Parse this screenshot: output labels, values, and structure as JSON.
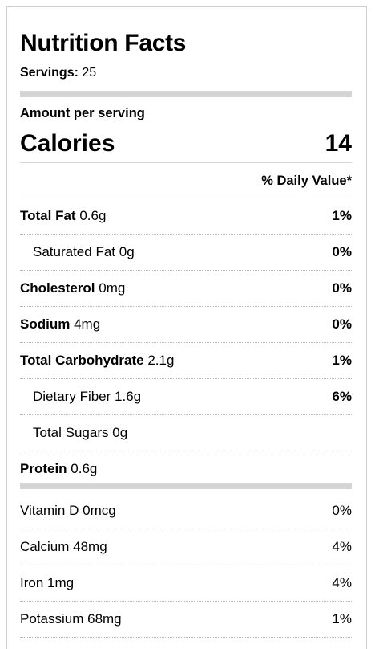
{
  "label": {
    "title": "Nutrition Facts",
    "servings_label": "Servings:",
    "servings_value": "25",
    "amount_per_serving": "Amount per serving",
    "calories_label": "Calories",
    "calories_value": "14",
    "daily_value_header": "% Daily Value*"
  },
  "nutrients": [
    {
      "name": "Total Fat",
      "amount": "0.6g",
      "dv": "1%"
    },
    {
      "name": "Saturated Fat",
      "amount": "0g",
      "dv": "0%"
    },
    {
      "name": "Cholesterol",
      "amount": "0mg",
      "dv": "0%"
    },
    {
      "name": "Sodium",
      "amount": "4mg",
      "dv": "0%"
    },
    {
      "name": "Total Carbohydrate",
      "amount": "2.1g",
      "dv": "1%"
    },
    {
      "name": "Dietary Fiber",
      "amount": "1.6g",
      "dv": "6%"
    },
    {
      "name": "Total Sugars",
      "amount": "0g",
      "dv": ""
    },
    {
      "name": "Protein",
      "amount": "0.6g",
      "dv": ""
    }
  ],
  "vitamins": [
    {
      "name": "Vitamin D",
      "amount": "0mcg",
      "dv": "0%"
    },
    {
      "name": "Calcium",
      "amount": "48mg",
      "dv": "4%"
    },
    {
      "name": "Iron",
      "amount": "1mg",
      "dv": "4%"
    },
    {
      "name": "Potassium",
      "amount": "68mg",
      "dv": "1%"
    }
  ],
  "colors": {
    "divider_thick": "#d4d4d4",
    "divider_dotted": "#b5b5b5",
    "border": "#cfcfcf"
  }
}
